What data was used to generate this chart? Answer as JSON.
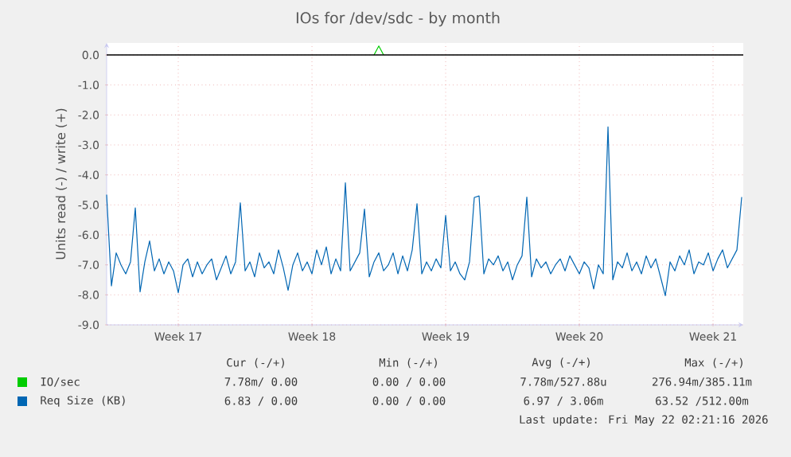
{
  "chart_data": {
    "type": "line",
    "title": "IOs for /dev/sdc - by month",
    "ylabel": "Units read (-) / write (+)",
    "categories": [
      null,
      null,
      null,
      null,
      null,
      null,
      null,
      null,
      null,
      null,
      null,
      null,
      null,
      null,
      null,
      "Week 17",
      null,
      null,
      null,
      null,
      null,
      null,
      null,
      null,
      null,
      null,
      null,
      null,
      null,
      null,
      null,
      null,
      null,
      null,
      null,
      null,
      null,
      null,
      null,
      null,
      null,
      null,
      null,
      "Week 18",
      null,
      null,
      null,
      null,
      null,
      null,
      null,
      null,
      null,
      null,
      null,
      null,
      null,
      null,
      null,
      null,
      null,
      null,
      null,
      null,
      null,
      null,
      null,
      null,
      null,
      null,
      null,
      "Week 19",
      null,
      null,
      null,
      null,
      null,
      null,
      null,
      null,
      null,
      null,
      null,
      null,
      null,
      null,
      null,
      null,
      null,
      null,
      null,
      null,
      null,
      null,
      null,
      null,
      null,
      null,
      null,
      "Week 20",
      null,
      null,
      null,
      null,
      null,
      null,
      null,
      null,
      null,
      null,
      null,
      null,
      null,
      null,
      null,
      null,
      null,
      null,
      null,
      null,
      null,
      null,
      null,
      null,
      null,
      null,
      null,
      "Week 21",
      null,
      null,
      null,
      null,
      null,
      null
    ],
    "ylim": [
      -9,
      0.4
    ],
    "yticks": [
      {
        "value": 0,
        "label": "0.0"
      },
      {
        "value": -1,
        "label": "-1.0"
      },
      {
        "value": -2,
        "label": "-2.0"
      },
      {
        "value": -3,
        "label": "-3.0"
      },
      {
        "value": -4,
        "label": "-4.0"
      },
      {
        "value": -5,
        "label": "-5.0"
      },
      {
        "value": -6,
        "label": "-6.0"
      },
      {
        "value": -7,
        "label": "-7.0"
      },
      {
        "value": -8,
        "label": "-8.0"
      },
      {
        "value": -9,
        "label": "-9.0"
      }
    ],
    "grid": true,
    "legend": "bottom",
    "ref_lines": [
      {
        "axis": "y",
        "value": 0,
        "color": "#000000"
      }
    ],
    "series": [
      {
        "name": "IO/sec",
        "color": "#00cc00",
        "values": [
          null,
          null,
          null,
          null,
          null,
          null,
          null,
          null,
          null,
          null,
          null,
          null,
          null,
          null,
          null,
          null,
          null,
          null,
          null,
          null,
          null,
          null,
          null,
          null,
          null,
          null,
          null,
          null,
          null,
          null,
          null,
          null,
          null,
          null,
          null,
          null,
          null,
          null,
          null,
          null,
          null,
          null,
          null,
          null,
          null,
          null,
          null,
          null,
          null,
          null,
          null,
          null,
          null,
          null,
          null,
          null,
          0,
          0.3,
          0,
          null,
          null,
          null,
          null,
          null,
          null,
          null,
          null,
          null,
          null,
          null,
          null,
          null,
          null,
          null,
          null,
          null,
          null,
          null,
          null,
          null,
          null,
          null,
          null,
          null,
          null,
          null,
          null,
          null,
          null,
          null,
          null,
          null,
          null,
          null,
          null,
          null,
          null,
          null,
          null,
          null,
          null,
          null,
          null,
          null,
          null,
          null,
          null,
          null,
          null,
          null,
          null,
          null,
          null,
          null,
          null,
          null,
          null,
          null,
          null,
          null,
          null,
          null,
          null,
          null,
          null,
          null,
          null,
          null,
          null,
          null,
          null,
          null,
          null,
          null
        ]
      },
      {
        "name": "Req Size (KB)",
        "color": "#0066b3",
        "values": [
          -4.66,
          -7.7,
          -6.6,
          -7.0,
          -7.3,
          -6.9,
          -5.1,
          -7.9,
          -6.9,
          -6.2,
          -7.2,
          -6.8,
          -7.3,
          -6.9,
          -7.2,
          -7.93,
          -7.0,
          -6.8,
          -7.4,
          -6.9,
          -7.3,
          -7.0,
          -6.8,
          -7.5,
          -7.1,
          -6.7,
          -7.3,
          -6.9,
          -4.93,
          -7.2,
          -6.9,
          -7.4,
          -6.6,
          -7.1,
          -6.9,
          -7.3,
          -6.5,
          -7.1,
          -7.85,
          -7.0,
          -6.6,
          -7.2,
          -6.9,
          -7.3,
          -6.5,
          -7.0,
          -6.4,
          -7.3,
          -6.8,
          -7.2,
          -4.26,
          -7.2,
          -6.9,
          -6.6,
          -5.14,
          -7.4,
          -6.9,
          -6.6,
          -7.2,
          -7.0,
          -6.6,
          -7.3,
          -6.7,
          -7.2,
          -6.5,
          -4.96,
          -7.3,
          -6.9,
          -7.2,
          -6.8,
          -7.1,
          -5.35,
          -7.2,
          -6.9,
          -7.3,
          -7.5,
          -6.9,
          -4.75,
          -4.7,
          -7.3,
          -6.8,
          -7.0,
          -6.7,
          -7.2,
          -6.9,
          -7.5,
          -7.0,
          -6.7,
          -4.74,
          -7.4,
          -6.8,
          -7.1,
          -6.9,
          -7.3,
          -7.0,
          -6.8,
          -7.2,
          -6.7,
          -7.0,
          -7.3,
          -6.9,
          -7.1,
          -7.8,
          -7.0,
          -7.3,
          -2.4,
          -7.5,
          -6.9,
          -7.1,
          -6.6,
          -7.2,
          -6.9,
          -7.3,
          -6.7,
          -7.1,
          -6.8,
          -7.4,
          -8.03,
          -6.9,
          -7.2,
          -6.7,
          -7.0,
          -6.5,
          -7.3,
          -6.9,
          -7.0,
          -6.6,
          -7.2,
          -6.8,
          -6.5,
          -7.1,
          -6.8,
          -6.5,
          -4.74
        ]
      }
    ],
    "annotations": [
      "Cur (-/+)",
      "Min (-/+)",
      "Avg (-/+)",
      "Max (-/+)",
      "7.78m/ 0.00",
      "0.00 / 0.00",
      "7.78m/527.88u",
      "276.94m/385.11m",
      "6.83 / 0.00",
      "0.00 / 0.00",
      "6.97 / 3.06m",
      "63.52 /512.00m",
      "Last update: Fri May 22 02:21:16 2026"
    ]
  }
}
